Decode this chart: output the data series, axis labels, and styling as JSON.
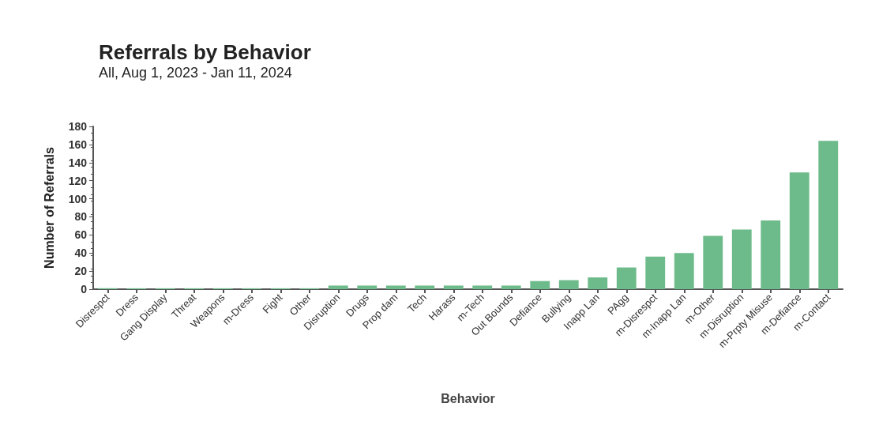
{
  "chart_data": {
    "type": "bar",
    "title": "Referrals by Behavior",
    "subtitle": "All, Aug 1, 2023 - Jan 11, 2024",
    "xlabel": "Behavior",
    "ylabel": "Number of Referrals",
    "categories": [
      "Disrespct",
      "Dress",
      "Gang Display",
      "Threat",
      "Weapons",
      "m-Dress",
      "Fight",
      "Other",
      "Disruption",
      "Drugs",
      "Prop dam",
      "Tech",
      "Harass",
      "m-Tech",
      "Out Bounds",
      "Defiance",
      "Bullying",
      "Inapp Lan",
      "PAgg",
      "m-Disrespct",
      "m-Inapp Lan",
      "m-Other",
      "m-Disruption",
      "m-Prpty Misuse",
      "m-Defiance",
      "m-Contact"
    ],
    "values": [
      1,
      1,
      1,
      1,
      1,
      1,
      1,
      1,
      4,
      4,
      4,
      4,
      4,
      4,
      4,
      9,
      10,
      13,
      24,
      36,
      40,
      59,
      66,
      76,
      129,
      164
    ],
    "color": "#6dbb8a",
    "ylim": [
      0,
      180
    ],
    "yticks": [
      0,
      20,
      40,
      60,
      80,
      100,
      120,
      140,
      160,
      180
    ],
    "grid": false
  }
}
